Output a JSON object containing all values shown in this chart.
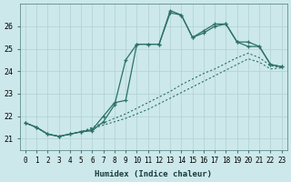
{
  "xlabel": "Humidex (Indice chaleur)",
  "background_color": "#cce8ea",
  "grid_color": "#b0d0d2",
  "line_color": "#2d7068",
  "xlim": [
    -0.5,
    23.5
  ],
  "ylim": [
    20.5,
    27.0
  ],
  "yticks": [
    21,
    22,
    23,
    24,
    25,
    26
  ],
  "xticks": [
    0,
    1,
    2,
    3,
    4,
    5,
    6,
    7,
    8,
    9,
    10,
    11,
    12,
    13,
    14,
    15,
    16,
    17,
    18,
    19,
    20,
    21,
    22,
    23
  ],
  "line1_x": [
    0,
    1,
    2,
    3,
    4,
    5,
    6,
    7,
    8,
    9,
    10,
    11,
    12,
    13,
    14,
    15,
    16,
    17,
    18,
    19,
    20,
    21,
    22,
    23
  ],
  "line1_y": [
    21.7,
    21.5,
    21.2,
    21.1,
    21.2,
    21.3,
    21.35,
    21.75,
    22.5,
    24.5,
    25.2,
    25.2,
    25.2,
    26.6,
    26.5,
    25.5,
    25.7,
    26.0,
    26.1,
    25.3,
    25.3,
    25.1,
    24.3,
    24.2
  ],
  "line2_x": [
    0,
    1,
    2,
    3,
    4,
    5,
    6,
    7,
    8,
    9,
    10,
    11,
    12,
    13,
    14,
    15,
    16,
    17,
    18,
    19,
    20,
    21,
    22,
    23
  ],
  "line2_y": [
    21.7,
    21.5,
    21.2,
    21.1,
    21.2,
    21.3,
    21.4,
    22.0,
    22.6,
    22.7,
    25.2,
    25.2,
    25.2,
    26.7,
    26.5,
    25.5,
    25.8,
    26.1,
    26.1,
    25.3,
    25.1,
    25.1,
    24.3,
    24.2
  ],
  "line3_x": [
    0,
    1,
    2,
    3,
    4,
    5,
    6,
    7,
    8,
    9,
    10,
    11,
    12,
    13,
    14,
    15,
    16,
    17,
    18,
    19,
    20,
    21,
    22,
    23
  ],
  "line3_y": [
    21.7,
    21.5,
    21.2,
    21.1,
    21.2,
    21.3,
    21.5,
    21.7,
    21.9,
    22.1,
    22.35,
    22.6,
    22.85,
    23.1,
    23.4,
    23.65,
    23.9,
    24.1,
    24.35,
    24.6,
    24.8,
    24.6,
    24.25,
    24.15
  ],
  "line4_x": [
    0,
    1,
    2,
    3,
    4,
    5,
    6,
    7,
    8,
    9,
    10,
    11,
    12,
    13,
    14,
    15,
    16,
    17,
    18,
    19,
    20,
    21,
    22,
    23
  ],
  "line4_y": [
    21.7,
    21.5,
    21.2,
    21.1,
    21.2,
    21.3,
    21.45,
    21.6,
    21.75,
    21.9,
    22.1,
    22.3,
    22.55,
    22.8,
    23.05,
    23.3,
    23.55,
    23.8,
    24.05,
    24.3,
    24.55,
    24.4,
    24.1,
    24.15
  ]
}
